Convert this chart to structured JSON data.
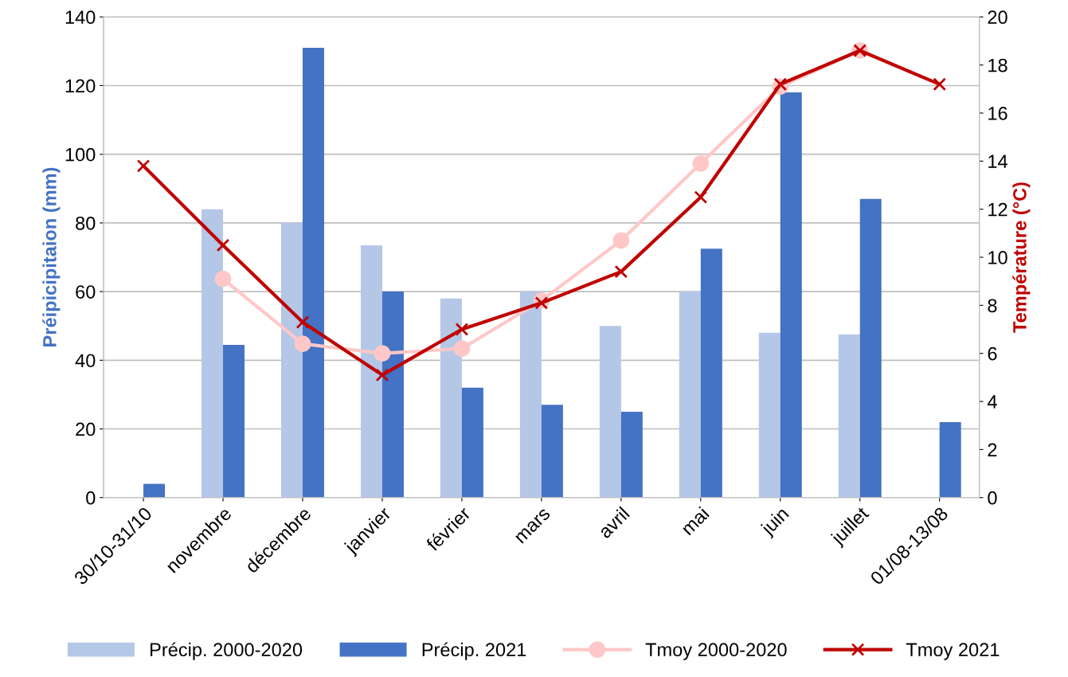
{
  "chart_data": {
    "type": "bar",
    "categories": [
      "30/10-31/10",
      "novembre",
      "décembre",
      "janvier",
      "février",
      "mars",
      "avril",
      "mai",
      "juin",
      "juillet",
      "01/08-13/08"
    ],
    "series": [
      {
        "name": "Précip. 2000-2020",
        "color": "#b4c7e7",
        "values": [
          null,
          84,
          80,
          73.5,
          58,
          60,
          50,
          60,
          48,
          47.5,
          null
        ]
      },
      {
        "name": "Précip. 2021",
        "color": "#4472c4",
        "values": [
          4,
          44.5,
          131,
          60,
          32,
          27,
          25,
          72.5,
          118,
          87,
          22
        ]
      },
      {
        "name": "Tmoy 2000-2020",
        "type": "line",
        "axis": "y2",
        "color": "#ffc7c7",
        "marker": "circle",
        "values": [
          null,
          9.1,
          6.4,
          6.0,
          6.2,
          8.2,
          10.7,
          13.9,
          17.1,
          18.6,
          null
        ]
      },
      {
        "name": "Tmoy 2021",
        "type": "line",
        "axis": "y2",
        "color": "#c00000",
        "marker": "cross",
        "values": [
          13.8,
          10.5,
          7.3,
          5.1,
          7.0,
          8.1,
          9.4,
          12.5,
          17.2,
          18.6,
          17.2
        ]
      }
    ],
    "ylabel": "Préipicipitaion (mm)",
    "y2label": "Température (°C)",
    "ylim": [
      0,
      140
    ],
    "yticks": [
      0,
      20,
      40,
      60,
      80,
      100,
      120,
      140
    ],
    "y2lim": [
      0,
      20
    ],
    "y2ticks": [
      0,
      2,
      4,
      6,
      8,
      10,
      12,
      14,
      16,
      18,
      20
    ],
    "grid": "y",
    "legend": "bottom"
  }
}
